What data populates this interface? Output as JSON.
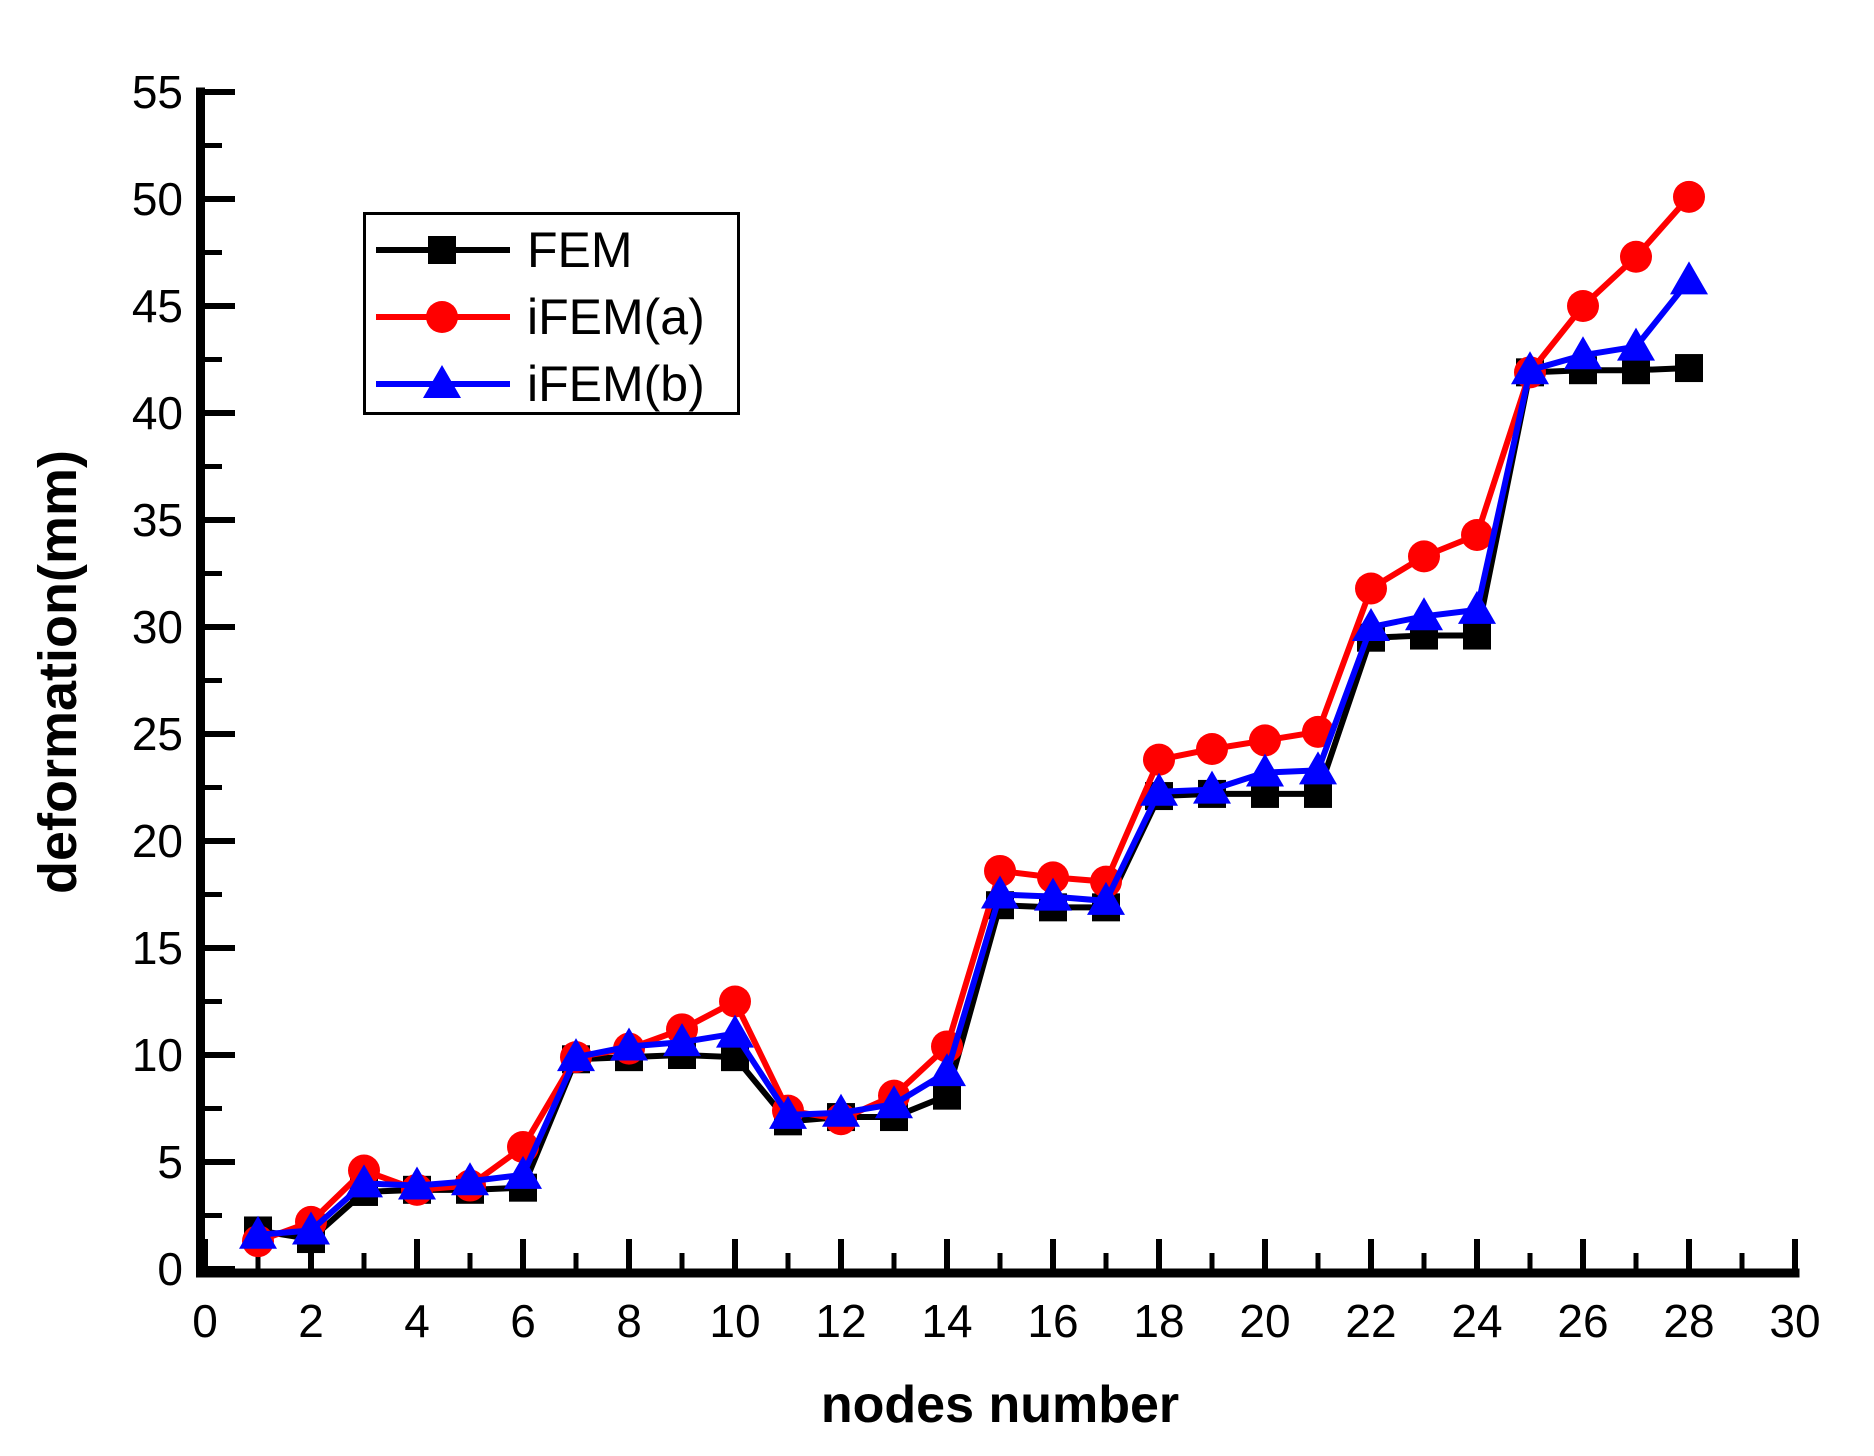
{
  "chart_data": {
    "type": "line",
    "title": "",
    "xlabel": "nodes number",
    "ylabel": "deformation(mm)",
    "xlim": [
      0,
      30
    ],
    "ylim": [
      0,
      55
    ],
    "x_major_tick_step": 2,
    "x_minor_tick_step": 1,
    "y_major_tick_step": 5,
    "y_minor_tick_step": 2.5,
    "x_tick_labels": [
      "0",
      "2",
      "4",
      "6",
      "8",
      "10",
      "12",
      "14",
      "16",
      "18",
      "20",
      "22",
      "24",
      "26",
      "28",
      "30"
    ],
    "y_tick_labels": [
      "0",
      "5",
      "10",
      "15",
      "20",
      "25",
      "30",
      "35",
      "40",
      "45",
      "50",
      "55"
    ],
    "grid": false,
    "legend_position": "upper-left-inside",
    "background_color": "#FFFFFF",
    "axis_color": "#000000",
    "x": [
      1,
      2,
      3,
      4,
      5,
      6,
      7,
      8,
      9,
      10,
      11,
      12,
      13,
      14,
      15,
      16,
      17,
      18,
      19,
      20,
      21,
      22,
      23,
      24,
      25,
      26,
      27,
      28
    ],
    "series": [
      {
        "name": "FEM",
        "color": "#000000",
        "marker": "square",
        "values": [
          1.8,
          1.4,
          3.6,
          3.7,
          3.7,
          3.8,
          9.8,
          9.9,
          10.0,
          9.9,
          6.9,
          7.1,
          7.1,
          8.1,
          17.0,
          16.9,
          16.9,
          22.1,
          22.2,
          22.2,
          22.2,
          29.5,
          29.6,
          29.6,
          41.9,
          42.0,
          42.0,
          42.1
        ]
      },
      {
        "name": "iFEM(a)",
        "color": "#FF0000",
        "marker": "circle",
        "values": [
          1.3,
          2.2,
          4.6,
          3.7,
          3.9,
          5.7,
          9.9,
          10.3,
          11.2,
          12.5,
          7.4,
          7.0,
          8.1,
          10.4,
          18.6,
          18.3,
          18.1,
          23.8,
          24.3,
          24.7,
          25.1,
          31.8,
          33.3,
          34.3,
          41.9,
          45.0,
          47.3,
          50.1
        ]
      },
      {
        "name": "iFEM(b)",
        "color": "#0000FF",
        "marker": "triangle-up",
        "values": [
          1.6,
          1.8,
          4.0,
          3.9,
          4.1,
          4.4,
          9.9,
          10.4,
          10.6,
          11.0,
          7.2,
          7.3,
          7.7,
          9.2,
          17.5,
          17.4,
          17.2,
          22.3,
          22.4,
          23.2,
          23.3,
          30.0,
          30.5,
          30.8,
          42.0,
          42.7,
          43.1,
          46.2
        ]
      }
    ]
  }
}
